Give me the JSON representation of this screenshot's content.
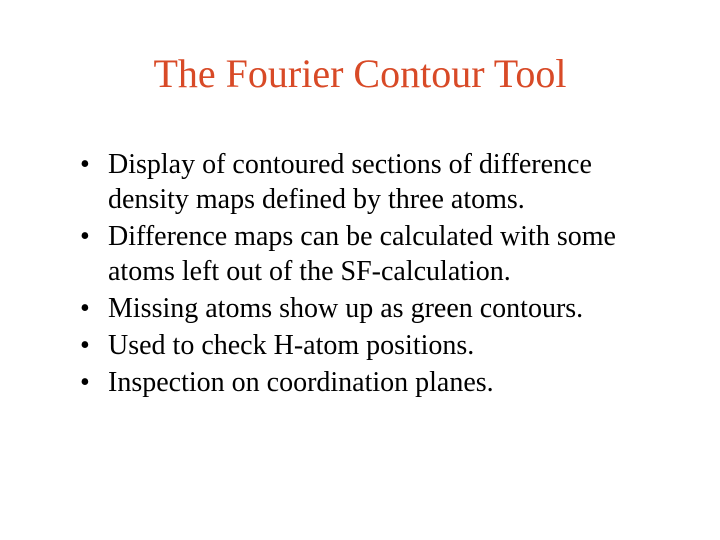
{
  "slide": {
    "title": "The Fourier Contour Tool",
    "title_color": "#d84a27",
    "title_fontsize": 40,
    "background_color": "#ffffff",
    "body_color": "#000000",
    "body_fontsize": 28,
    "font_family": "Times New Roman",
    "bullets": [
      " Display of contoured sections of difference density maps defined by three atoms.",
      "Difference maps can be calculated with some atoms left out of the SF-calculation.",
      "Missing atoms show up as green contours.",
      "Used to check H-atom positions.",
      "Inspection on coordination planes."
    ]
  }
}
